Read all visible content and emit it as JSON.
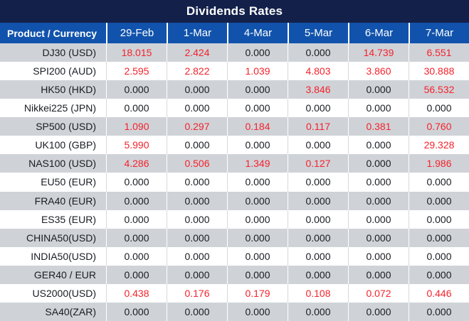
{
  "title": "Dividends Rates",
  "columns": [
    "Product / Currency",
    "29-Feb",
    "1-Mar",
    "4-Mar",
    "5-Mar",
    "6-Mar",
    "7-Mar"
  ],
  "rows": [
    {
      "product": "DJ30 (USD)",
      "values": [
        "18.015",
        "2.424",
        "0.000",
        "0.000",
        "14.739",
        "6.551"
      ]
    },
    {
      "product": "SPI200 (AUD)",
      "values": [
        "2.595",
        "2.822",
        "1.039",
        "4.803",
        "3.860",
        "30.888"
      ]
    },
    {
      "product": "HK50 (HKD)",
      "values": [
        "0.000",
        "0.000",
        "0.000",
        "3.846",
        "0.000",
        "56.532"
      ]
    },
    {
      "product": "Nikkei225 (JPN)",
      "values": [
        "0.000",
        "0.000",
        "0.000",
        "0.000",
        "0.000",
        "0.000"
      ]
    },
    {
      "product": "SP500 (USD)",
      "values": [
        "1.090",
        "0.297",
        "0.184",
        "0.117",
        "0.381",
        "0.760"
      ]
    },
    {
      "product": "UK100 (GBP)",
      "values": [
        "5.990",
        "0.000",
        "0.000",
        "0.000",
        "0.000",
        "29.328"
      ]
    },
    {
      "product": "NAS100 (USD)",
      "values": [
        "4.286",
        "0.506",
        "1.349",
        "0.127",
        "0.000",
        "1.986"
      ]
    },
    {
      "product": "EU50 (EUR)",
      "values": [
        "0.000",
        "0.000",
        "0.000",
        "0.000",
        "0.000",
        "0.000"
      ]
    },
    {
      "product": "FRA40 (EUR)",
      "values": [
        "0.000",
        "0.000",
        "0.000",
        "0.000",
        "0.000",
        "0.000"
      ]
    },
    {
      "product": "ES35 (EUR)",
      "values": [
        "0.000",
        "0.000",
        "0.000",
        "0.000",
        "0.000",
        "0.000"
      ]
    },
    {
      "product": "CHINA50(USD)",
      "values": [
        "0.000",
        "0.000",
        "0.000",
        "0.000",
        "0.000",
        "0.000"
      ]
    },
    {
      "product": "INDIA50(USD)",
      "values": [
        "0.000",
        "0.000",
        "0.000",
        "0.000",
        "0.000",
        "0.000"
      ]
    },
    {
      "product": "GER40 / EUR",
      "values": [
        "0.000",
        "0.000",
        "0.000",
        "0.000",
        "0.000",
        "0.000"
      ]
    },
    {
      "product": "US2000(USD)",
      "values": [
        "0.438",
        "0.176",
        "0.179",
        "0.108",
        "0.072",
        "0.446"
      ]
    },
    {
      "product": "SA40(ZAR)",
      "values": [
        "0.000",
        "0.000",
        "0.000",
        "0.000",
        "0.000",
        "0.000"
      ]
    }
  ],
  "colors": {
    "title_bar_bg": "#13214a",
    "header_bg": "#1153ac",
    "stripe_gray": "#cfd3d8",
    "nonzero_red": "#f5222b",
    "text_dark": "#191c22"
  }
}
